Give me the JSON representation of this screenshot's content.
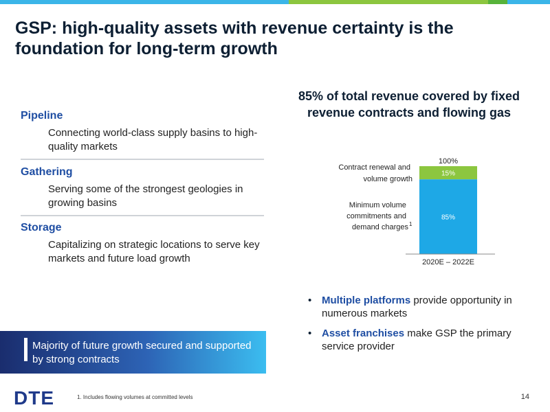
{
  "top_bar_colors": [
    "#3bb5e8",
    "#3bb5e8",
    "#8cc63f",
    "#57b33a",
    "#3bb5e8"
  ],
  "slide": {
    "title": "GSP: high-quality assets with revenue certainty is the foundation for long-term growth"
  },
  "sections": [
    {
      "heading": "Pipeline",
      "body": "Connecting world-class supply basins to high-quality markets"
    },
    {
      "heading": "Gathering",
      "body": "Serving some of the strongest geologies in growing basins"
    },
    {
      "heading": "Storage",
      "body": "Capitalizing on strategic locations to serve key markets and future load growth"
    }
  ],
  "chart_title": "85% of total revenue covered by fixed revenue contracts and flowing gas",
  "chart_data": {
    "type": "bar",
    "stacked": true,
    "categories": [
      "2020E – 2022E"
    ],
    "total_label": "100%",
    "series": [
      {
        "name": "Minimum volume commitments and demand charges",
        "superscript": "1",
        "values": [
          85
        ],
        "label": "85%",
        "color": "#1ea8e6"
      },
      {
        "name": "Contract renewal and volume growth",
        "values": [
          15
        ],
        "label": "15%",
        "color": "#8cc63f"
      }
    ],
    "ylim": [
      0,
      100
    ]
  },
  "chart_labels": {
    "contract_line1": "Contract renewal and",
    "contract_line2": "volume growth",
    "minimum_line1": "Minimum volume",
    "minimum_line2": "commitments and",
    "minimum_line3": "demand charges"
  },
  "bullets": [
    {
      "highlight": "Multiple platforms",
      "rest": " provide opportunity in numerous markets"
    },
    {
      "highlight": "Asset franchises",
      "rest": " make GSP the primary service provider"
    }
  ],
  "callout": "Majority of future growth secured and supported by strong contracts",
  "footer": {
    "logo_text": "DTE",
    "logo_color": "#1f3a8a",
    "footnote": "1. Includes flowing volumes at committed levels",
    "page_number": "14"
  }
}
